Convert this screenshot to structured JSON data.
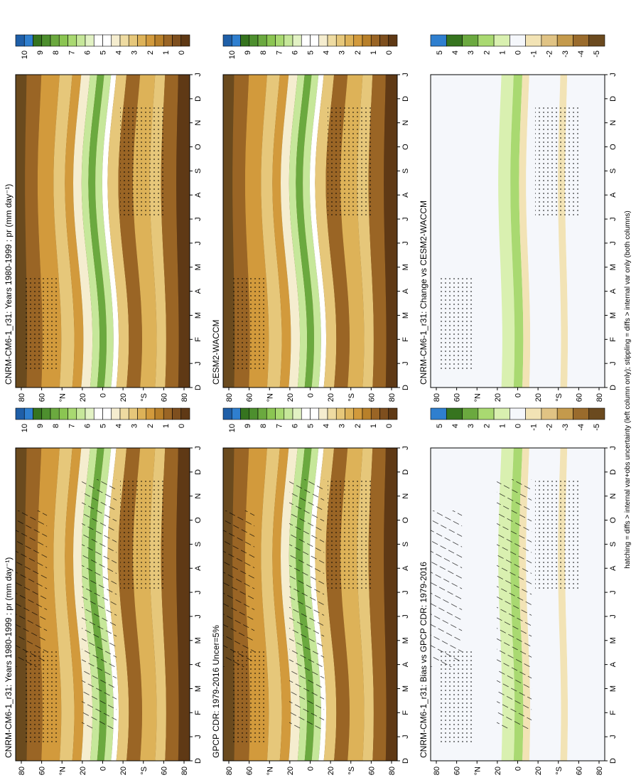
{
  "figure": {
    "footnote": "hatching = diffs > internal var+obs uncertainty (left column only); stippling = diffs > internal var only (both columns)"
  },
  "chart_data": [
    {
      "type": "heatmap",
      "id": "model-clim",
      "title": "CNRM-CM6-1_r31: Years 1980-1999 : pr (mm day⁻¹)",
      "x_ticks": [
        "D",
        "J",
        "F",
        "M",
        "A",
        "M",
        "J",
        "J",
        "A",
        "S",
        "O",
        "N",
        "D",
        "J"
      ],
      "y_ticks": [
        "80",
        "60",
        "°N",
        "20",
        "0",
        "20",
        "°S",
        "60",
        "80"
      ],
      "colorbar": {
        "ticks": [
          "10",
          "9",
          "8",
          "7",
          "6",
          "5",
          "4",
          "3",
          "2",
          "1",
          "0"
        ]
      },
      "hatching": true,
      "stippling": true
    },
    {
      "type": "heatmap",
      "id": "model2-clim",
      "title": "CNRM-CM6-1_r31: Years 1980-1999 : pr (mm day⁻¹)",
      "x_ticks": [
        "D",
        "J",
        "F",
        "M",
        "A",
        "M",
        "J",
        "J",
        "A",
        "S",
        "O",
        "N",
        "D",
        "J"
      ],
      "y_ticks": [
        "80",
        "60",
        "°N",
        "20",
        "0",
        "20",
        "°S",
        "60",
        "80"
      ],
      "colorbar": {
        "ticks": [
          "10",
          "9",
          "8",
          "7",
          "6",
          "5",
          "4",
          "3",
          "2",
          "1",
          "0"
        ]
      },
      "hatching": false,
      "stippling": true
    },
    {
      "type": "heatmap",
      "id": "obs-clim",
      "title": "GPCP CDR: 1979-2016 Uncer=5%",
      "x_ticks": [
        "D",
        "J",
        "F",
        "M",
        "A",
        "M",
        "J",
        "J",
        "A",
        "S",
        "O",
        "N",
        "D",
        "J"
      ],
      "y_ticks": [
        "80",
        "60",
        "°N",
        "20",
        "0",
        "20",
        "°S",
        "60",
        "80"
      ],
      "colorbar": {
        "ticks": [
          "10",
          "9",
          "8",
          "7",
          "6",
          "5",
          "4",
          "3",
          "2",
          "1",
          "0"
        ]
      },
      "hatching": true,
      "stippling": true
    },
    {
      "type": "heatmap",
      "id": "cesm-clim",
      "title": "CESM2-WACCM",
      "x_ticks": [
        "D",
        "J",
        "F",
        "M",
        "A",
        "M",
        "J",
        "J",
        "A",
        "S",
        "O",
        "N",
        "D",
        "J"
      ],
      "y_ticks": [
        "80",
        "60",
        "°N",
        "20",
        "0",
        "20",
        "°S",
        "60",
        "80"
      ],
      "colorbar": {
        "ticks": [
          "10",
          "9",
          "8",
          "7",
          "6",
          "5",
          "4",
          "3",
          "2",
          "1",
          "0"
        ]
      },
      "hatching": false,
      "stippling": true
    },
    {
      "type": "heatmap",
      "id": "bias",
      "title": "CNRM-CM6-1_r31: Bias vs GPCP CDR: 1979-2016",
      "x_ticks": [
        "D",
        "J",
        "F",
        "M",
        "A",
        "M",
        "J",
        "J",
        "A",
        "S",
        "O",
        "N",
        "D",
        "J"
      ],
      "y_ticks": [
        "80",
        "60",
        "°N",
        "20",
        "0",
        "20",
        "°S",
        "60",
        "80"
      ],
      "colorbar": {
        "ticks": [
          "5",
          "4",
          "3",
          "2",
          "1",
          "0",
          "-1",
          "-2",
          "-3",
          "-4",
          "-5"
        ]
      },
      "hatching": true,
      "stippling": true
    },
    {
      "type": "heatmap",
      "id": "change",
      "title": "CNRM-CM6-1_r31: Change vs CESM2-WACCM",
      "x_ticks": [
        "D",
        "J",
        "F",
        "M",
        "A",
        "M",
        "J",
        "J",
        "A",
        "S",
        "O",
        "N",
        "D",
        "J"
      ],
      "y_ticks": [
        "80",
        "60",
        "°N",
        "20",
        "0",
        "20",
        "°S",
        "60",
        "80"
      ],
      "colorbar": {
        "ticks": [
          "5",
          "4",
          "3",
          "2",
          "1",
          "0",
          "-1",
          "-2",
          "-3",
          "-4",
          "-5"
        ]
      },
      "hatching": false,
      "stippling": true
    }
  ],
  "palettes": {
    "precip": [
      "#ffffff",
      "#f5edcf",
      "#eedba1",
      "#e6c77a",
      "#ddb258",
      "#d29a3c",
      "#b8802a",
      "#9a6525",
      "#7e4f1e",
      "#5f3915",
      "#ffffff",
      "#e2f2c4",
      "#c6e79a",
      "#a9d971",
      "#8bc552",
      "#6ba93f",
      "#4d8f2e",
      "#36741f",
      "#2f7fcf",
      "#1f5fa8"
    ],
    "diff": [
      "#6b4a1f",
      "#9a6b2c",
      "#c49a4c",
      "#e0c384",
      "#f2e3b5",
      "#f5f7fb",
      "#d9f0b0",
      "#a9d971",
      "#6ba93f",
      "#36741f",
      "#2f7fcf"
    ]
  }
}
